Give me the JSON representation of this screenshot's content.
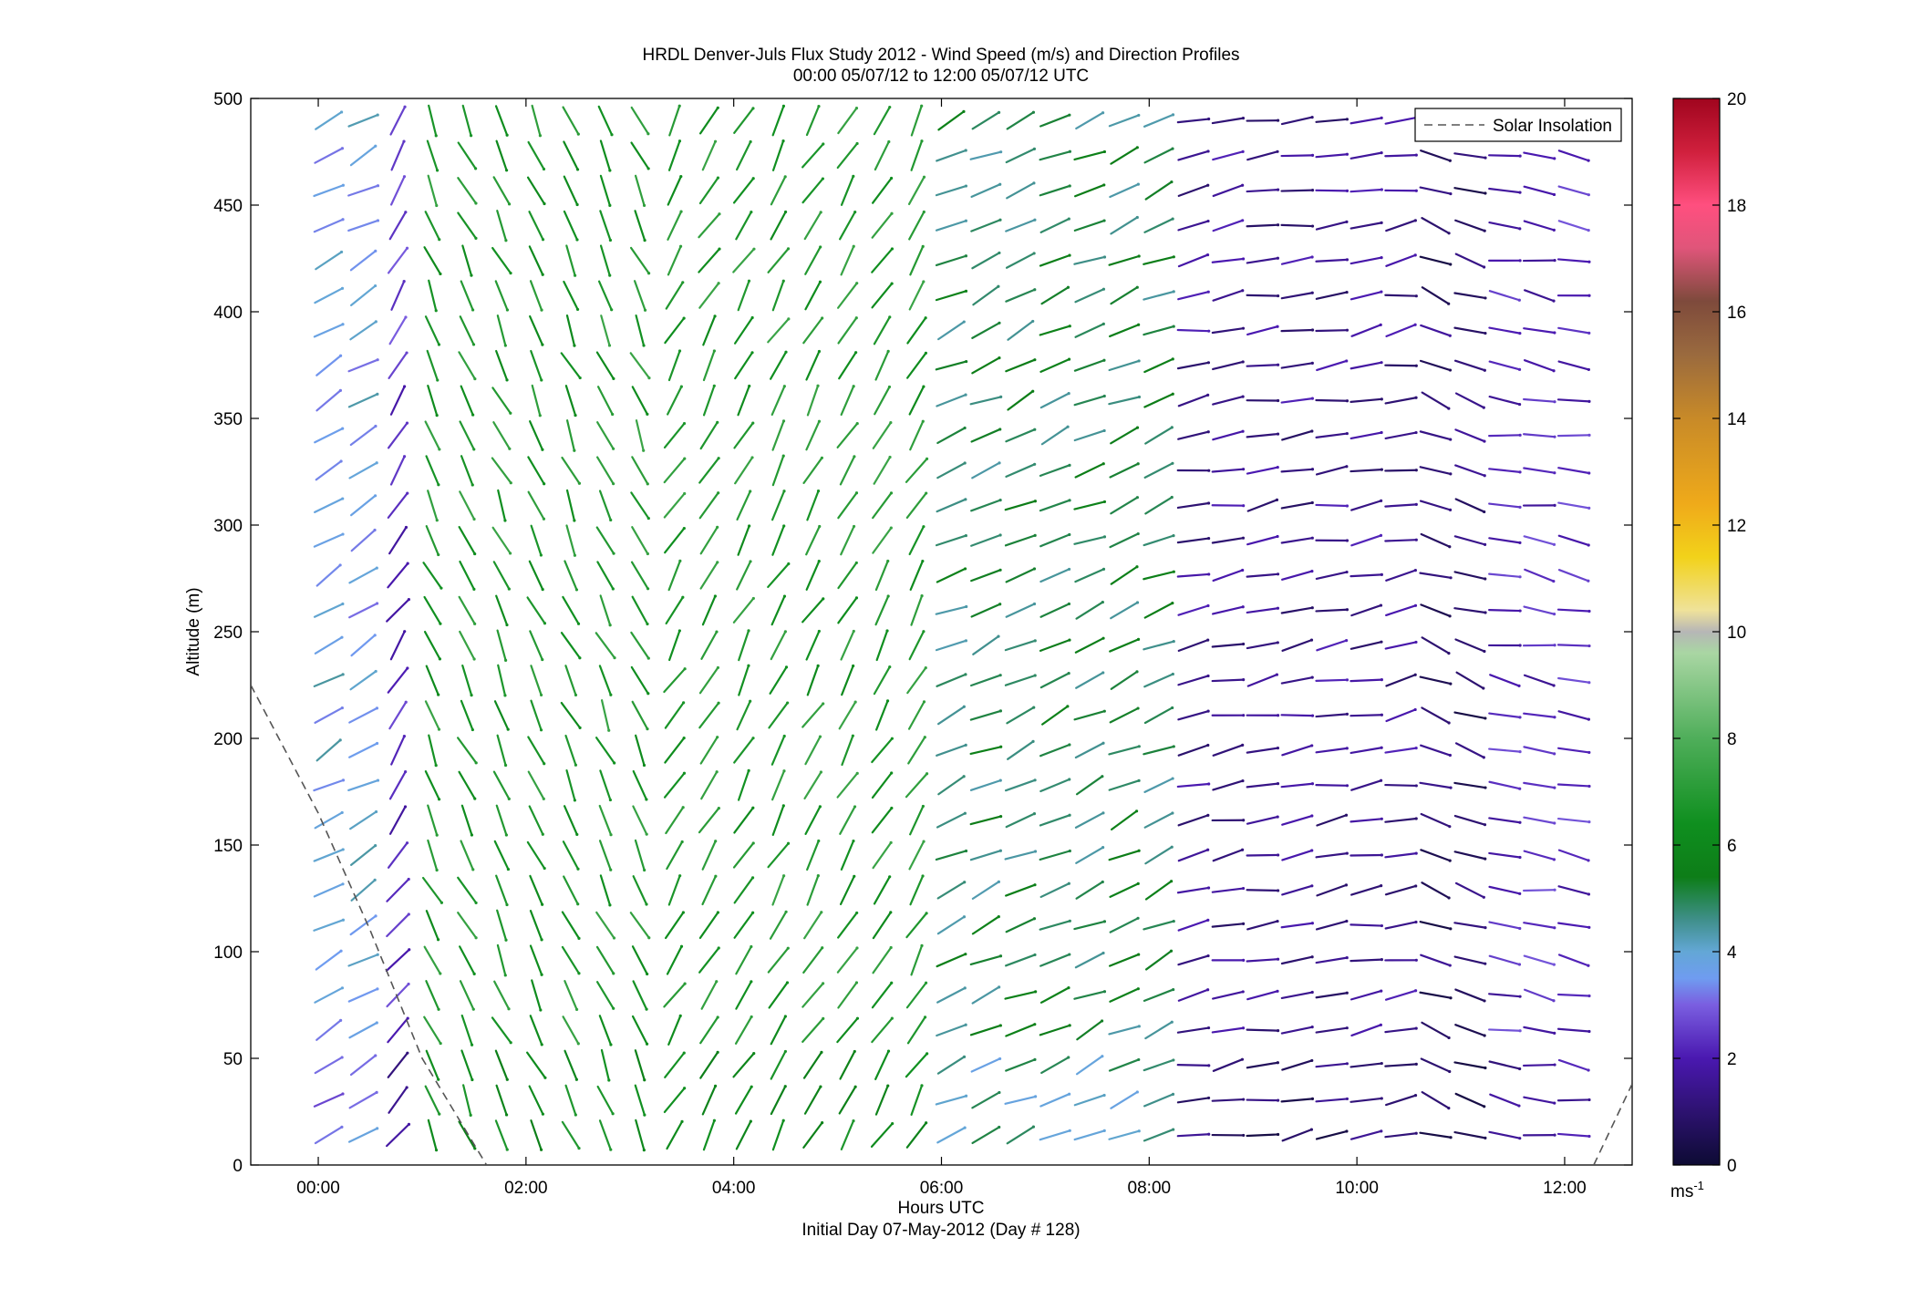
{
  "chart_data": {
    "type": "vector-field",
    "title_line1": "HRDL Denver-Juls Flux Study 2012 - Wind Speed (m/s) and Direction Profiles",
    "title_line2": "00:00 05/07/12 to 12:00 05/07/12  UTC",
    "xlabel": "Hours UTC",
    "subcaption": "Initial Day 07-May-2012 (Day # 128)",
    "ylabel": "Altitude (m)",
    "xlim": [
      -0.65,
      12.65
    ],
    "ylim": [
      0,
      500
    ],
    "x_ticks": [
      {
        "value": 0,
        "label": "00:00"
      },
      {
        "value": 2,
        "label": "02:00"
      },
      {
        "value": 4,
        "label": "04:00"
      },
      {
        "value": 6,
        "label": "06:00"
      },
      {
        "value": 8,
        "label": "08:00"
      },
      {
        "value": 10,
        "label": "10:00"
      },
      {
        "value": 12,
        "label": "12:00"
      }
    ],
    "y_ticks": [
      0,
      50,
      100,
      150,
      200,
      250,
      300,
      350,
      400,
      450,
      500
    ],
    "legend": {
      "label": "Solar Insolation",
      "position": "top-right",
      "style": "dashed"
    },
    "solar_insolation": [
      {
        "x": -0.65,
        "y": 225
      },
      {
        "x": 0.0,
        "y": 165
      },
      {
        "x": 0.5,
        "y": 110
      },
      {
        "x": 1.0,
        "y": 50
      },
      {
        "x": 1.62,
        "y": 0
      },
      {
        "x": 12.28,
        "y": 0
      },
      {
        "x": 12.65,
        "y": 38
      }
    ],
    "colorbar": {
      "min": 0,
      "max": 20,
      "ticks": [
        0,
        2,
        4,
        6,
        8,
        10,
        12,
        14,
        16,
        18,
        20
      ],
      "unit": "ms",
      "unit_exp": "-1",
      "stops": [
        {
          "v": 0,
          "c": "#0d0b33"
        },
        {
          "v": 1,
          "c": "#2d1270"
        },
        {
          "v": 2,
          "c": "#4a18b0"
        },
        {
          "v": 3,
          "c": "#7a5ee0"
        },
        {
          "v": 3.5,
          "c": "#6f9cf0"
        },
        {
          "v": 4,
          "c": "#63a7d6"
        },
        {
          "v": 4.6,
          "c": "#3f8f8a"
        },
        {
          "v": 5.4,
          "c": "#0d7d18"
        },
        {
          "v": 6.4,
          "c": "#0f8f1f"
        },
        {
          "v": 8,
          "c": "#4fae5a"
        },
        {
          "v": 9.6,
          "c": "#a9d6a3"
        },
        {
          "v": 10,
          "c": "#b6b6b6"
        },
        {
          "v": 10.4,
          "c": "#efe29a"
        },
        {
          "v": 11.4,
          "c": "#f2d21a"
        },
        {
          "v": 12.4,
          "c": "#efaa1a"
        },
        {
          "v": 14,
          "c": "#c88a28"
        },
        {
          "v": 15.2,
          "c": "#9a6a3e"
        },
        {
          "v": 16.2,
          "c": "#7e4a3c"
        },
        {
          "v": 17.2,
          "c": "#e0557a"
        },
        {
          "v": 18,
          "c": "#ff4f7f"
        },
        {
          "v": 19,
          "c": "#d0203d"
        },
        {
          "v": 20,
          "c": "#a0051e"
        }
      ]
    },
    "wind_field": {
      "description": "Wind barbs sampled every 20 minutes and every 16 m; speed (m/s) sets color, direction (deg, direction toward which the vector points, 0=east, CCW positive) sets orientation",
      "times_hours": [
        0.1,
        12.3
      ],
      "time_step_hours": 0.333,
      "altitudes_m": [
        14,
        490
      ],
      "altitude_step_m": 16.4,
      "regimes": [
        {
          "t_start": 0.0,
          "t_end": 0.5,
          "speed_ms": 3.8,
          "direction_deg": 30
        },
        {
          "t_start": 0.5,
          "t_end": 0.8,
          "speed_ms": 2.4,
          "direction_deg": 55
        },
        {
          "t_start": 0.8,
          "t_end": 3.1,
          "speed_ms": 6.8,
          "direction_deg": -65
        },
        {
          "t_start": 3.1,
          "t_end": 6.0,
          "speed_ms": 6.8,
          "direction_deg": 60
        },
        {
          "t_start": 6.0,
          "t_end": 8.3,
          "speed_ms": 5.0,
          "direction_deg": 25
        },
        {
          "t_start": 8.3,
          "t_end": 10.5,
          "speed_ms": 1.5,
          "direction_deg": 10
        },
        {
          "t_start": 10.5,
          "t_end": 11.4,
          "speed_ms": 1.0,
          "direction_deg": -20
        },
        {
          "t_start": 11.4,
          "t_end": 12.3,
          "speed_ms": 2.2,
          "direction_deg": -10
        }
      ]
    }
  }
}
